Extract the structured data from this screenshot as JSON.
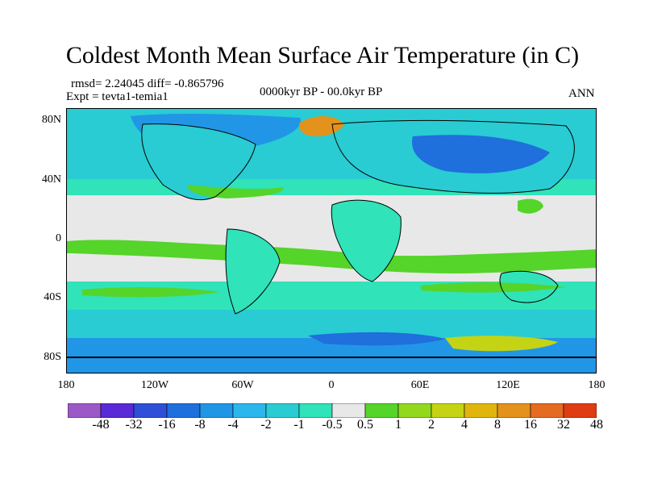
{
  "title": "Coldest Month Mean Surface Air Temperature (in C)",
  "stats_line": "rmsd= 2.24045 diff= -0.865796",
  "experiment_line": "Expt = tevta1-temia1",
  "period_line": "0000kyr BP - 00.0kyr BP",
  "season_label": "ANN",
  "lat_labels": [
    "80N",
    "40N",
    "0",
    "40S",
    "80S"
  ],
  "lon_labels": [
    "180",
    "120W",
    "60W",
    "0",
    "60E",
    "120E",
    "180"
  ],
  "colorbar": {
    "labels": [
      "-48",
      "-32",
      "-16",
      "-8",
      "-4",
      "-2",
      "-1",
      "-0.5",
      "0.5",
      "1",
      "2",
      "4",
      "8",
      "16",
      "32",
      "48"
    ],
    "colors": [
      "#9b59c8",
      "#5a2ad6",
      "#2f4fd8",
      "#1f6fdc",
      "#2196e6",
      "#2cb7ec",
      "#28ccd2",
      "#30e3b8",
      "#e8e8e8",
      "#55d42a",
      "#92d81c",
      "#c4d414",
      "#e0b60e",
      "#e3921c",
      "#e56a22",
      "#e03c14"
    ]
  },
  "colors": {
    "ocean_neutral": "#e8e8e8",
    "cool_light": "#30e3b8",
    "cool_medium": "#28ccd2",
    "cool_strong": "#2196e6",
    "cold": "#1f6fdc",
    "warm_light": "#55d42a",
    "warm_medium": "#92d81c",
    "hot": "#e3921c"
  }
}
